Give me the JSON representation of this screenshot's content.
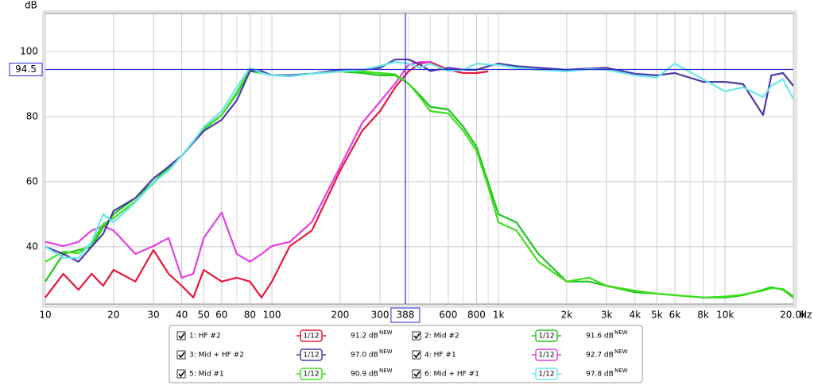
{
  "chart_data": {
    "type": "line",
    "x_label": "Hz",
    "y_label": "dB",
    "log_x": true,
    "grid": true,
    "xlim": [
      10,
      20000
    ],
    "ylim": [
      22.4,
      111.7
    ],
    "xticks": [
      10,
      20,
      30,
      40,
      50,
      60,
      80,
      100,
      200,
      300,
      600,
      800,
      {
        "value": 1000,
        "label": "1k"
      },
      {
        "value": 2000,
        "label": "2k"
      },
      {
        "value": 3000,
        "label": "3k"
      },
      {
        "value": 4000,
        "label": "4k"
      },
      {
        "value": 5000,
        "label": "5k"
      },
      {
        "value": 6000,
        "label": "6k"
      },
      {
        "value": 8000,
        "label": "8k"
      },
      {
        "value": 10000,
        "label": "10k"
      },
      {
        "value": 20000,
        "label": "20.0k"
      }
    ],
    "xgrid": [
      70,
      90,
      400,
      500,
      700,
      900,
      7000,
      9000
    ],
    "yticks": [
      40,
      60,
      80,
      100
    ],
    "cursor": {
      "x": 388,
      "y": 94.5,
      "color": "#2a2ad0"
    },
    "legend_badge": "NEW",
    "x": [
      10,
      12,
      14,
      16,
      18,
      20,
      25,
      30,
      35,
      40,
      45,
      50,
      60,
      70,
      80,
      90,
      100,
      120,
      150,
      200,
      250,
      300,
      350,
      400,
      450,
      500,
      600,
      700,
      800,
      900,
      1000,
      1200,
      1500,
      2000,
      2500,
      3000,
      4000,
      5000,
      6000,
      8000,
      10000,
      12000,
      14700,
      16000,
      18000,
      20000
    ],
    "series": [
      {
        "name": "1: HF #2",
        "color": "#e8173c",
        "smoothing": "1/12",
        "readout": "91.2 dB",
        "values": [
          24.4,
          31.7,
          26.8,
          31.7,
          28,
          32.9,
          29.3,
          39,
          31.7,
          28,
          24.4,
          32.9,
          29.3,
          30.5,
          29.3,
          24.4,
          29.3,
          40.2,
          45,
          63.4,
          75.6,
          81.7,
          89,
          93.9,
          96.3,
          96.8,
          94.4,
          93.4,
          93.4,
          93.9,
          null,
          null,
          null,
          null,
          null,
          null,
          null,
          null,
          null,
          null,
          null,
          null,
          null,
          null,
          null,
          null
        ]
      },
      {
        "name": "2: Mid #2",
        "color": "#1fc41f",
        "smoothing": "1/12",
        "readout": "91.6 dB",
        "values": [
          29.3,
          37.8,
          39,
          40,
          46,
          50,
          55,
          59.8,
          64.6,
          68,
          72.4,
          76.3,
          80.5,
          87,
          94,
          93.4,
          92.7,
          92.7,
          93.2,
          93.9,
          93.4,
          92.7,
          92.7,
          90.2,
          86.6,
          83,
          82.2,
          76.8,
          70.7,
          59.8,
          50,
          47.5,
          37.8,
          29.3,
          29.3,
          28,
          26,
          25.6,
          25.1,
          24.4,
          24.4,
          25.1,
          26.8,
          27.6,
          26.8,
          24.4
        ]
      },
      {
        "name": "3: Mid + HF #2",
        "color": "#4a3aa8",
        "smoothing": "1/12",
        "readout": "97.0 dB",
        "values": [
          40,
          37.8,
          35.4,
          40,
          44,
          51,
          55,
          61,
          64.6,
          68,
          72,
          75.6,
          79,
          85,
          94,
          94,
          92.7,
          92.7,
          93.2,
          94.4,
          94.4,
          95,
          97.6,
          97.6,
          96,
          94,
          95,
          94.4,
          94.4,
          95.5,
          96.3,
          95.5,
          95,
          94.4,
          94.8,
          95,
          93.2,
          92.7,
          93.4,
          90.7,
          90.7,
          90,
          80.5,
          92.7,
          93.4,
          89.5
        ]
      },
      {
        "name": "4: HF #1",
        "color": "#e33fe3",
        "smoothing": "1/12",
        "readout": "92.7 dB",
        "values": [
          41.5,
          40.2,
          41.5,
          45,
          46.3,
          45,
          37.8,
          40.2,
          42.7,
          30.5,
          31.7,
          42.7,
          50.5,
          37.8,
          35.4,
          37.8,
          40.2,
          41.5,
          47.6,
          64.6,
          78,
          84.6,
          90.2,
          95.9,
          96.8,
          96.8,
          null,
          null,
          null,
          null,
          null,
          null,
          null,
          null,
          null,
          null,
          null,
          null,
          null,
          null,
          null,
          null,
          null,
          null,
          null,
          null
        ]
      },
      {
        "name": "5: Mid #1",
        "color": "#3ee01a",
        "smoothing": "1/12",
        "readout": "90.9 dB",
        "values": [
          35.4,
          38.5,
          38,
          41,
          47,
          48.8,
          54,
          59.5,
          64,
          68,
          72,
          76,
          80.5,
          87.5,
          94.5,
          93.4,
          92.7,
          92.7,
          93.2,
          93.9,
          93.9,
          93.4,
          93,
          90.2,
          86,
          81.7,
          81,
          75.6,
          69.5,
          58.5,
          47.5,
          45,
          35.4,
          29.3,
          30.5,
          28,
          26.5,
          25.6,
          25.1,
          24.4,
          24.7,
          25.3,
          26.5,
          27.3,
          27,
          24.8
        ]
      },
      {
        "name": "6: Mid + HF #1",
        "color": "#6ae6f0",
        "smoothing": "1/12",
        "readout": "97.8 dB",
        "values": [
          40,
          36.6,
          36.6,
          41.5,
          50,
          47.5,
          53.7,
          59.8,
          63.4,
          68,
          72.4,
          76.8,
          81.7,
          89,
          95,
          93.4,
          92.7,
          92.4,
          93.2,
          93.9,
          94.4,
          95.6,
          96.8,
          96.3,
          95,
          96.3,
          94,
          94.4,
          96.3,
          96,
          95.9,
          95,
          94.4,
          93.9,
          94.6,
          94.4,
          92.7,
          92,
          96.3,
          91.5,
          87.8,
          89,
          86,
          89.5,
          91.5,
          85.4
        ]
      }
    ]
  }
}
